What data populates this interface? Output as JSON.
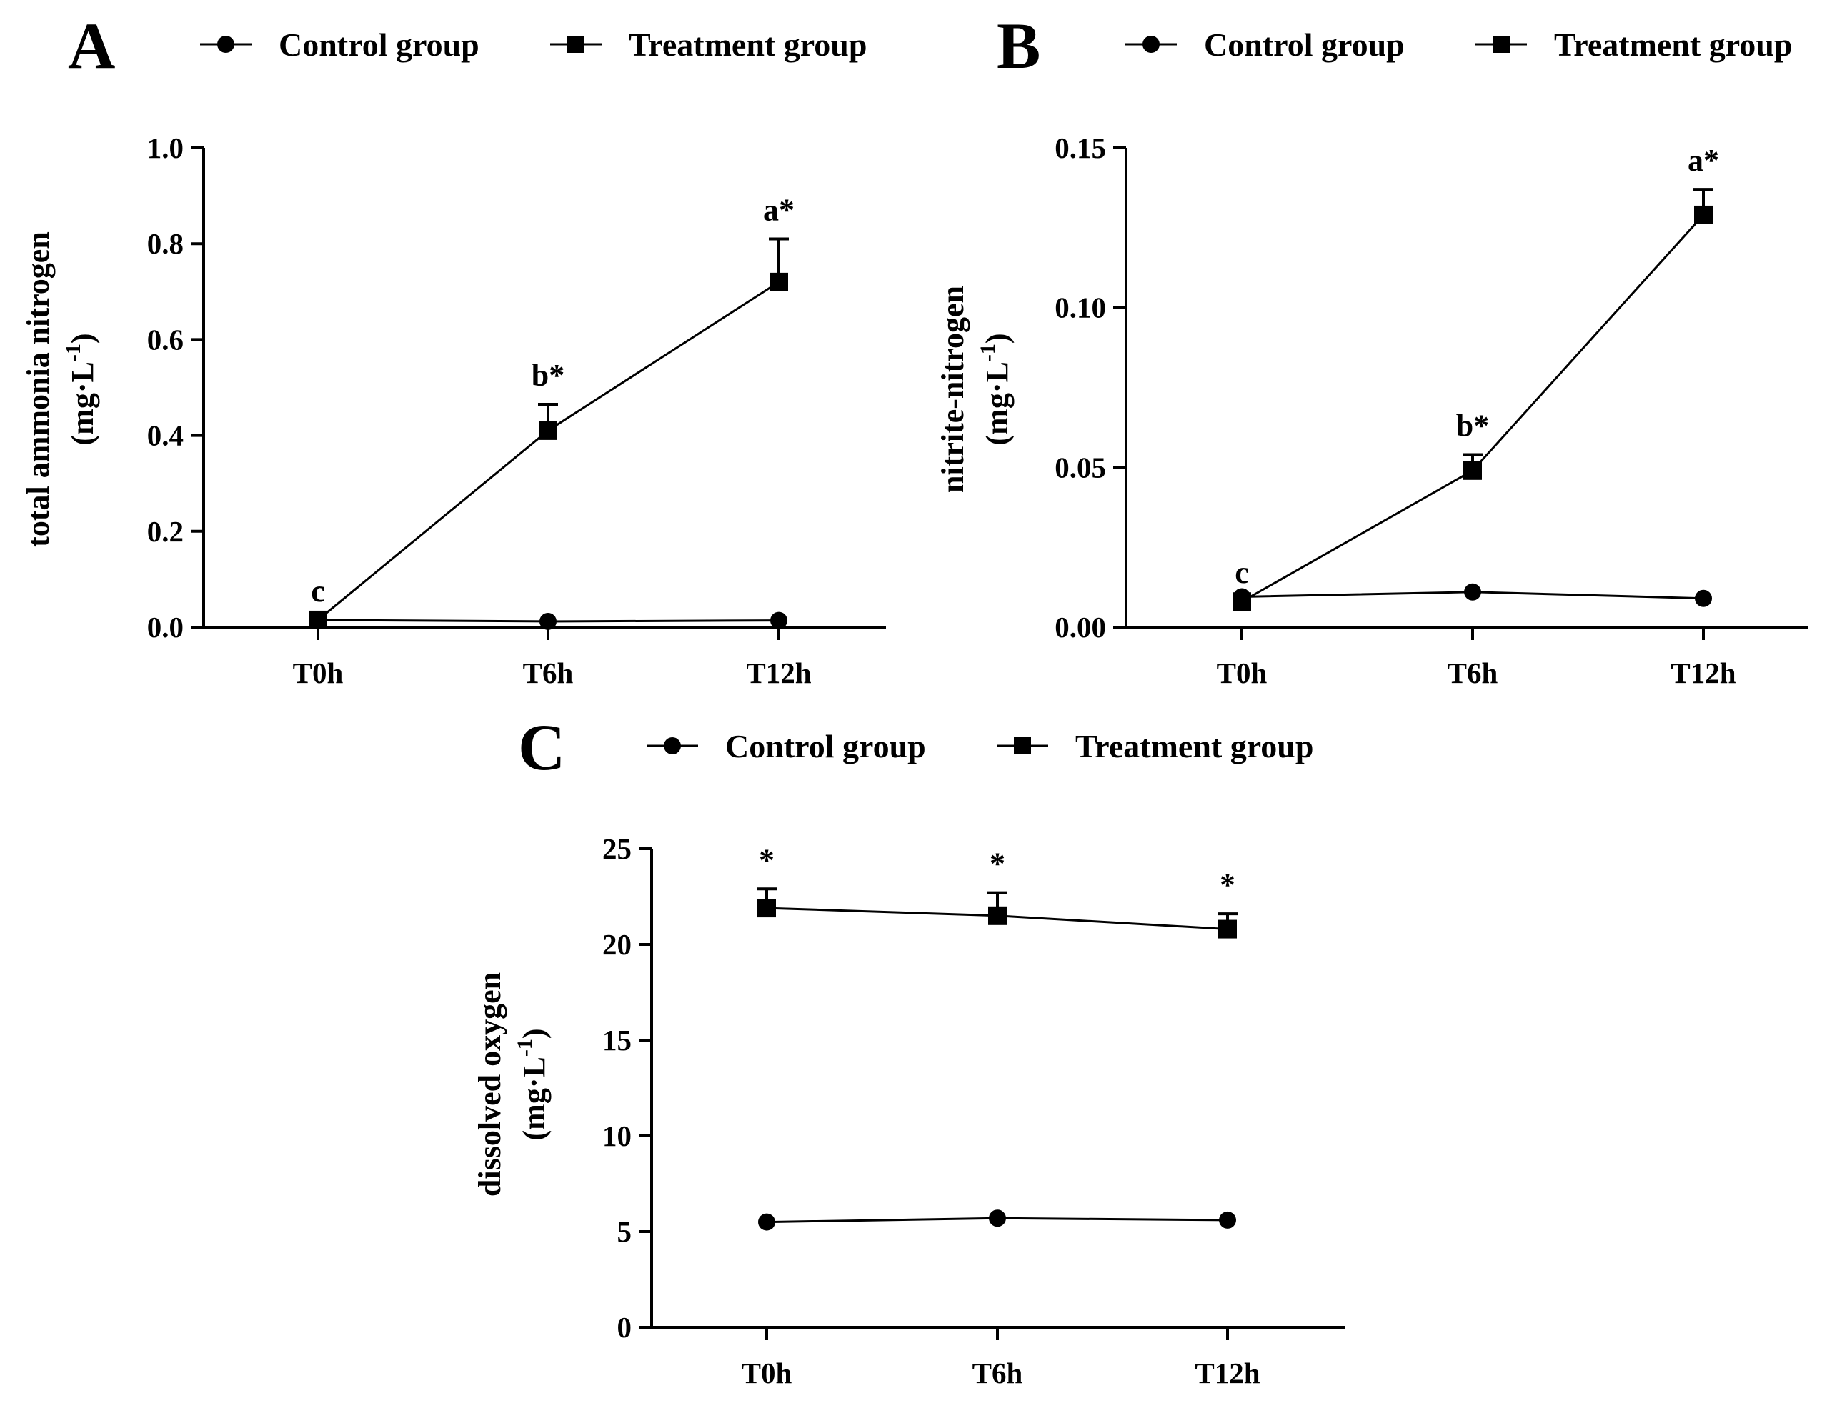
{
  "figure": {
    "legend": {
      "control": "Control group",
      "treatment": "Treatment group"
    }
  },
  "chart_data": [
    {
      "panel": "A",
      "type": "line",
      "ylabel_line1": "total ammonia nitrogen",
      "ylabel_line2": "(mg·L",
      "ylabel_sup": "-1",
      "ylabel_close": ")",
      "categories": [
        "T0h",
        "T6h",
        "T12h"
      ],
      "ylim": [
        0,
        1.0
      ],
      "yticks": [
        0.0,
        0.2,
        0.4,
        0.6,
        0.8,
        1.0
      ],
      "ytick_labels": [
        "0.0",
        "0.2",
        "0.4",
        "0.6",
        "0.8",
        "1.0"
      ],
      "series": [
        {
          "name": "Control group",
          "marker": "circle",
          "values": [
            0.015,
            0.012,
            0.014
          ],
          "errors": [
            0,
            0,
            0
          ]
        },
        {
          "name": "Treatment group",
          "marker": "square",
          "values": [
            0.015,
            0.41,
            0.72
          ],
          "errors": [
            0,
            0.055,
            0.09
          ]
        }
      ],
      "annotations": [
        "c",
        "b*",
        "a*"
      ]
    },
    {
      "panel": "B",
      "type": "line",
      "ylabel_line1": "nitrite-nitrogen",
      "ylabel_line2": "(mg·L",
      "ylabel_sup": "-1",
      "ylabel_close": ")",
      "categories": [
        "T0h",
        "T6h",
        "T12h"
      ],
      "ylim": [
        0,
        0.15
      ],
      "yticks": [
        0.0,
        0.05,
        0.1,
        0.15
      ],
      "ytick_labels": [
        "0.00",
        "0.05",
        "0.10",
        "0.15"
      ],
      "series": [
        {
          "name": "Control group",
          "marker": "circle",
          "values": [
            0.0095,
            0.011,
            0.009
          ],
          "errors": [
            0,
            0,
            0
          ]
        },
        {
          "name": "Treatment group",
          "marker": "square",
          "values": [
            0.008,
            0.049,
            0.129
          ],
          "errors": [
            0,
            0.005,
            0.008
          ]
        }
      ],
      "annotations": [
        "c",
        "b*",
        "a*"
      ]
    },
    {
      "panel": "C",
      "type": "line",
      "ylabel_line1": "dissolved oxygen",
      "ylabel_line2": "(mg·L",
      "ylabel_sup": "-1",
      "ylabel_close": ")",
      "categories": [
        "T0h",
        "T6h",
        "T12h"
      ],
      "ylim": [
        0,
        25
      ],
      "yticks": [
        0,
        5,
        10,
        15,
        20,
        25
      ],
      "ytick_labels": [
        "0",
        "5",
        "10",
        "15",
        "20",
        "25"
      ],
      "series": [
        {
          "name": "Control group",
          "marker": "circle",
          "values": [
            5.5,
            5.7,
            5.6
          ],
          "errors": [
            0,
            0,
            0
          ]
        },
        {
          "name": "Treatment group",
          "marker": "square",
          "values": [
            21.9,
            21.5,
            20.8
          ],
          "errors": [
            1.0,
            1.2,
            0.8
          ]
        }
      ],
      "annotations": [
        "*",
        "*",
        "*"
      ]
    }
  ]
}
